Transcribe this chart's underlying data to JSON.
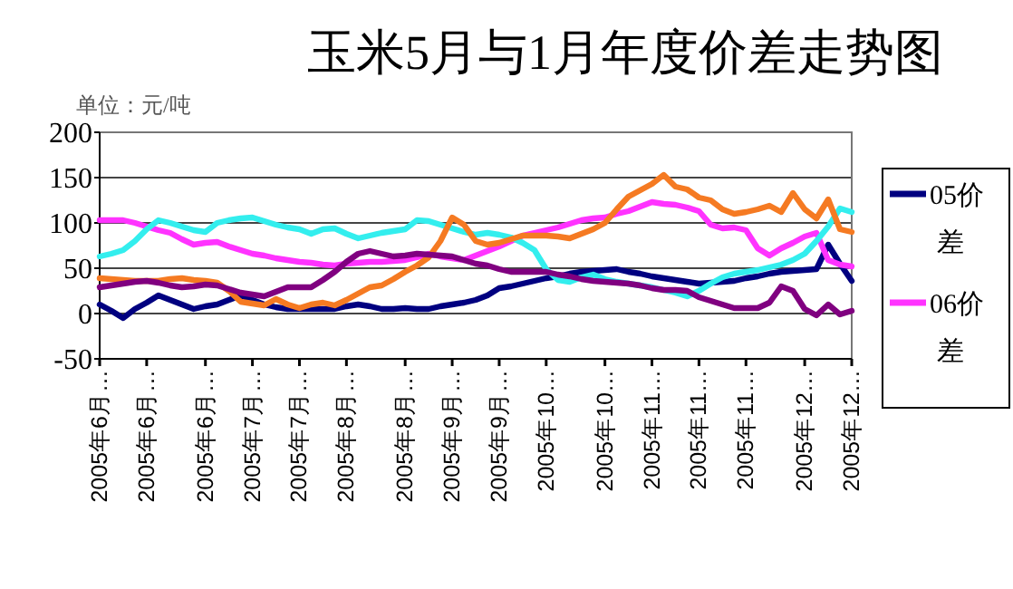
{
  "chart_data": {
    "type": "line",
    "title": "玉米5月与1月年度价差走势图",
    "ylabel": "单位：元/吨",
    "categories": [
      "2005年6月…",
      null,
      null,
      null,
      "2005年6月…",
      null,
      null,
      null,
      null,
      "2005年6月…",
      null,
      null,
      null,
      "2005年7月…",
      null,
      null,
      null,
      "2005年7月…",
      null,
      null,
      null,
      "2005年8月…",
      null,
      null,
      null,
      null,
      "2005年8月…",
      null,
      null,
      null,
      "2005年9月…",
      null,
      null,
      null,
      "2005年9月…",
      null,
      null,
      null,
      "2005年10…",
      null,
      null,
      null,
      null,
      "2005年10…",
      null,
      null,
      null,
      "2005年11…",
      null,
      null,
      null,
      "2005年11…",
      null,
      null,
      null,
      "2005年11…",
      null,
      null,
      null,
      null,
      "2005年12…",
      null,
      null,
      null,
      "2005年12…"
    ],
    "ylim": [
      -50,
      200
    ],
    "yticks": [
      -50,
      0,
      50,
      100,
      150,
      200
    ],
    "grid": "y",
    "legend": "right",
    "marker": "none",
    "line_style": "solid",
    "series": [
      {
        "name": "05价差",
        "color": "#000080",
        "values": [
          10,
          3,
          -5,
          5,
          12,
          20,
          15,
          10,
          5,
          8,
          10,
          15,
          20,
          15,
          10,
          7,
          5,
          5,
          5,
          5,
          5,
          8,
          10,
          8,
          5,
          5,
          6,
          5,
          5,
          8,
          10,
          12,
          15,
          20,
          28,
          30,
          33,
          36,
          39,
          41,
          44,
          46,
          47,
          48,
          49,
          46,
          44,
          41,
          39,
          37,
          35,
          33,
          34,
          35,
          36,
          39,
          41,
          44,
          46,
          47,
          48,
          49,
          76,
          55,
          36
        ]
      },
      {
        "name": "06价差",
        "color": "#ff33ff",
        "values": [
          103,
          103,
          103,
          100,
          96,
          92,
          89,
          82,
          76,
          78,
          79,
          74,
          70,
          66,
          64,
          61,
          59,
          57,
          56,
          54,
          53,
          55,
          56,
          57,
          57,
          58,
          59,
          62,
          66,
          63,
          61,
          59,
          64,
          69,
          74,
          80,
          86,
          89,
          92,
          95,
          99,
          103,
          105,
          106,
          110,
          113,
          118,
          123,
          121,
          120,
          117,
          113,
          98,
          94,
          95,
          92,
          72,
          64,
          72,
          78,
          85,
          89,
          59,
          54,
          52
        ]
      },
      {
        "color": "#33eeee",
        "values": [
          63,
          66,
          70,
          80,
          93,
          103,
          100,
          96,
          92,
          90,
          100,
          103,
          105,
          106,
          102,
          98,
          95,
          93,
          88,
          93,
          94,
          88,
          83,
          86,
          89,
          91,
          93,
          103,
          102,
          98,
          94,
          90,
          87,
          89,
          87,
          84,
          78,
          70,
          49,
          37,
          35,
          40,
          43,
          38,
          35,
          33,
          31,
          29,
          26,
          23,
          19,
          25,
          33,
          40,
          44,
          46,
          48,
          51,
          54,
          59,
          66,
          80,
          96,
          116,
          112
        ]
      },
      {
        "color": "#f57a22",
        "values": [
          39,
          38,
          37,
          36,
          36,
          36,
          38,
          39,
          37,
          36,
          34,
          25,
          13,
          11,
          9,
          16,
          10,
          6,
          10,
          12,
          9,
          15,
          22,
          29,
          31,
          38,
          46,
          53,
          62,
          80,
          106,
          98,
          80,
          76,
          78,
          82,
          86,
          86,
          86,
          85,
          83,
          88,
          93,
          100,
          115,
          129,
          136,
          143,
          153,
          140,
          137,
          128,
          125,
          115,
          110,
          112,
          115,
          119,
          112,
          133,
          115,
          105,
          126,
          93,
          90
        ]
      },
      {
        "color": "#800080",
        "values": [
          29,
          31,
          33,
          35,
          36,
          34,
          31,
          29,
          30,
          32,
          31,
          27,
          23,
          21,
          19,
          24,
          29,
          29,
          29,
          37,
          46,
          57,
          66,
          69,
          66,
          63,
          64,
          66,
          65,
          64,
          63,
          59,
          55,
          53,
          49,
          46,
          46,
          46,
          46,
          43,
          41,
          38,
          36,
          35,
          34,
          33,
          31,
          28,
          26,
          26,
          25,
          18,
          14,
          10,
          6,
          6,
          6,
          12,
          30,
          25,
          5,
          -2,
          10,
          -1,
          3
        ]
      }
    ]
  }
}
